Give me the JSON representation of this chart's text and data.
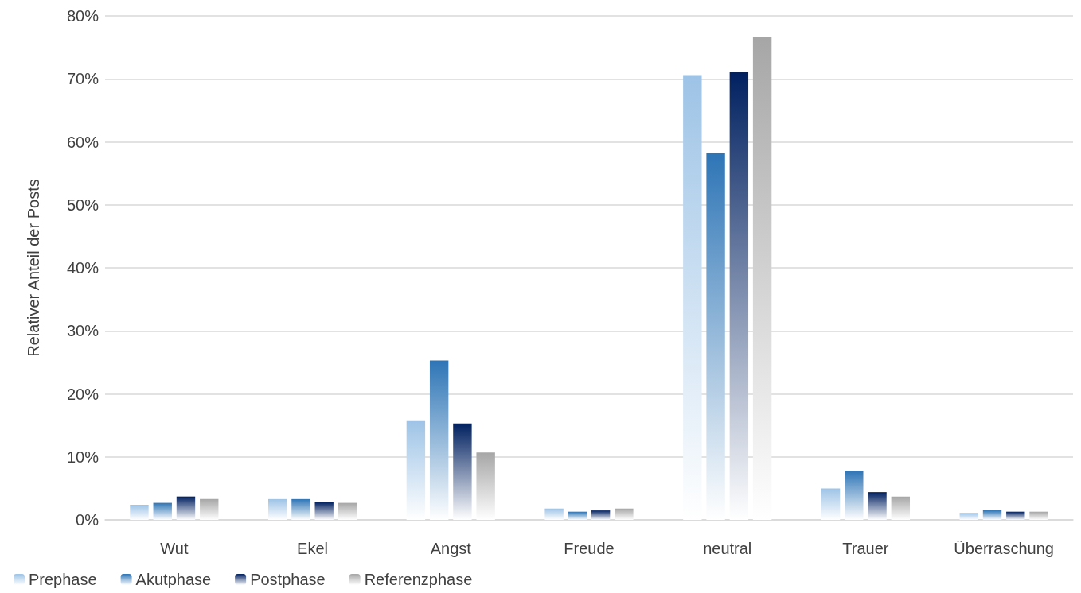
{
  "chart_data": {
    "type": "bar",
    "ylabel": "Relativer Anteil der Posts",
    "categories": [
      "Wut",
      "Ekel",
      "Angst",
      "Freude",
      "neutral",
      "Trauer",
      "Überraschung"
    ],
    "series": [
      {
        "name": "Prephase",
        "color": "#9dc3e6",
        "values": [
          2.4,
          3.3,
          15.8,
          1.8,
          70.6,
          5.0,
          1.1
        ]
      },
      {
        "name": "Akutphase",
        "color": "#2e75b6",
        "values": [
          2.7,
          3.3,
          25.3,
          1.3,
          58.2,
          7.8,
          1.5
        ]
      },
      {
        "name": "Postphase",
        "color": "#002060",
        "values": [
          3.7,
          2.8,
          15.3,
          1.5,
          71.1,
          4.4,
          1.3
        ]
      },
      {
        "name": "Referenzphase",
        "color": "#a6a6a6",
        "values": [
          3.3,
          2.7,
          10.7,
          1.8,
          76.7,
          3.7,
          1.3
        ]
      }
    ],
    "ylim": [
      0,
      80
    ],
    "yticks": [
      {
        "value": 0,
        "label": "0%"
      },
      {
        "value": 10,
        "label": "10%"
      },
      {
        "value": 20,
        "label": "20%"
      },
      {
        "value": 30,
        "label": "30%"
      },
      {
        "value": 40,
        "label": "40%"
      },
      {
        "value": 50,
        "label": "50%"
      },
      {
        "value": 60,
        "label": "60%"
      },
      {
        "value": 70,
        "label": "70%"
      },
      {
        "value": 80,
        "label": "80%"
      }
    ],
    "grid": "y",
    "legend": "bottom left"
  }
}
